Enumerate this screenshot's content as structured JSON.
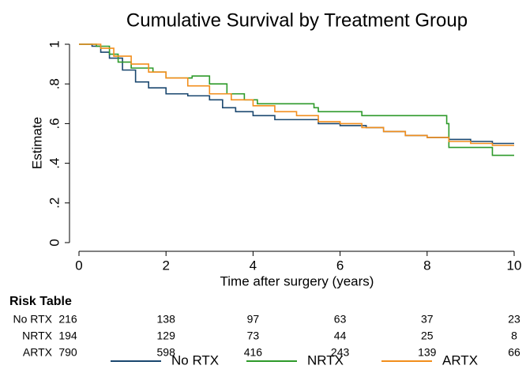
{
  "chart_data": {
    "type": "step",
    "title": "Cumulative Survival by Treatment Group",
    "xlabel": "Time after surgery (years)",
    "ylabel": "Estimate",
    "xlim": [
      0,
      10
    ],
    "ylim": [
      0,
      1
    ],
    "xticks": [
      0,
      2,
      4,
      6,
      8,
      10
    ],
    "yticks": [
      0,
      {
        "value": 0.2,
        "label": ".2"
      },
      {
        "value": 0.4,
        "label": ".4"
      },
      {
        "value": 0.6,
        "label": ".6"
      },
      {
        "value": 0.8,
        "label": ".8"
      },
      1
    ],
    "series": [
      {
        "name": "No RTX",
        "color": "#1a476f",
        "x": [
          0,
          0.3,
          0.5,
          0.7,
          1.0,
          1.3,
          1.6,
          2.0,
          2.5,
          3.0,
          3.3,
          3.6,
          4.0,
          4.5,
          5.0,
          5.5,
          6.0,
          6.6,
          7.0,
          7.5,
          8.0,
          8.5,
          9.0,
          9.5,
          10
        ],
        "values": [
          1,
          0.99,
          0.96,
          0.93,
          0.87,
          0.81,
          0.78,
          0.75,
          0.74,
          0.72,
          0.68,
          0.66,
          0.64,
          0.62,
          0.62,
          0.6,
          0.59,
          0.58,
          0.56,
          0.54,
          0.53,
          0.52,
          0.51,
          0.5,
          0.5
        ]
      },
      {
        "name": "NRTX",
        "color": "#2e9a2a",
        "x": [
          0,
          0.4,
          0.7,
          0.9,
          1.2,
          1.7,
          2.0,
          2.6,
          3.0,
          3.4,
          3.8,
          4.1,
          4.7,
          5.4,
          5.5,
          6.5,
          7.3,
          8.45,
          8.5,
          9.5,
          10
        ],
        "values": [
          1,
          0.99,
          0.95,
          0.91,
          0.88,
          0.86,
          0.83,
          0.84,
          0.8,
          0.75,
          0.72,
          0.7,
          0.7,
          0.68,
          0.66,
          0.64,
          0.64,
          0.6,
          0.48,
          0.44,
          0.44
        ]
      },
      {
        "name": "ARTX",
        "color": "#f28e1c",
        "x": [
          0,
          0.5,
          0.8,
          1.2,
          1.6,
          2.0,
          2.5,
          3.0,
          3.5,
          4.0,
          4.5,
          5.0,
          5.5,
          6.0,
          6.5,
          7.0,
          7.5,
          8.0,
          8.5,
          9.0,
          9.5,
          10
        ],
        "values": [
          1,
          0.98,
          0.94,
          0.9,
          0.86,
          0.83,
          0.79,
          0.75,
          0.72,
          0.69,
          0.66,
          0.64,
          0.61,
          0.6,
          0.58,
          0.56,
          0.54,
          0.53,
          0.51,
          0.5,
          0.49,
          0.49
        ]
      }
    ],
    "risk_table": {
      "title": "Risk Table",
      "rows": [
        {
          "name": "No RTX",
          "values": [
            216,
            138,
            97,
            63,
            37,
            23
          ]
        },
        {
          "name": "NRTX",
          "values": [
            194,
            129,
            73,
            44,
            25,
            8
          ]
        },
        {
          "name": "ARTX",
          "values": [
            790,
            598,
            416,
            243,
            139,
            66
          ]
        }
      ]
    }
  }
}
